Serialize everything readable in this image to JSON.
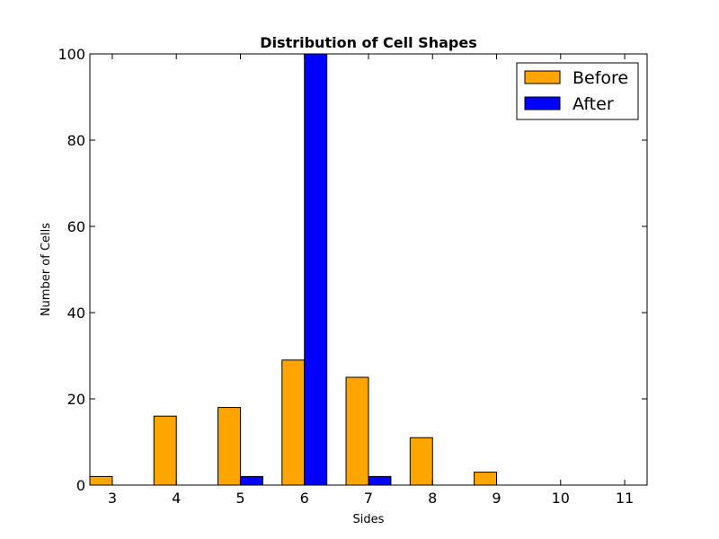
{
  "chart_data": {
    "type": "bar",
    "title": "Distribution of Cell Shapes",
    "xlabel": "Sides",
    "ylabel": "Number of Cells",
    "categories": [
      "3",
      "4",
      "5",
      "6",
      "7",
      "8",
      "9",
      "10",
      "11"
    ],
    "series": [
      {
        "name": "Before",
        "color": "#FFA500",
        "values": [
          2,
          16,
          18,
          29,
          25,
          11,
          3,
          0,
          0
        ]
      },
      {
        "name": "After",
        "color": "#0000FF",
        "values": [
          0,
          0,
          2,
          100,
          2,
          0,
          0,
          0,
          0
        ]
      }
    ],
    "ylim": [
      0,
      100
    ],
    "yticks": [
      "0",
      "20",
      "40",
      "60",
      "80",
      "100"
    ],
    "legend_position": "top-right",
    "grid": false
  }
}
